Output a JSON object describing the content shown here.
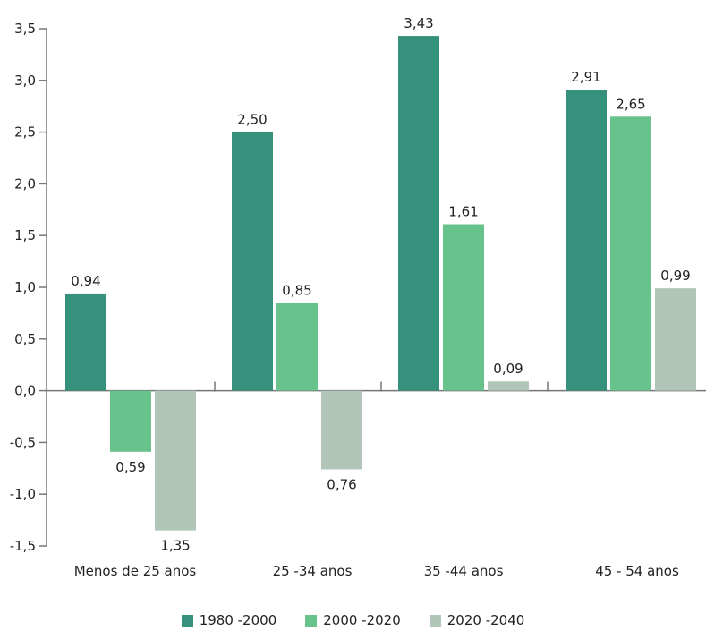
{
  "chart_data": {
    "type": "bar",
    "categories": [
      "Menos de 25 anos",
      "25 -34 anos",
      "35 -44 anos",
      "45 - 54 anos"
    ],
    "series": [
      {
        "name": "1980 -2000",
        "color": "#35917c",
        "values": [
          0.94,
          2.5,
          3.43,
          2.91
        ],
        "labels": [
          "0,94",
          "2,50",
          "3,43",
          "2,91"
        ]
      },
      {
        "name": "2000 -2020",
        "color": "#68c28c",
        "values": [
          -0.59,
          0.85,
          1.61,
          2.65
        ],
        "labels": [
          "0,59",
          "0,85",
          "1,61",
          "2,65"
        ]
      },
      {
        "name": "2020 -2040",
        "color": "#b1c6b8",
        "values": [
          -1.35,
          -0.76,
          0.09,
          0.99
        ],
        "labels": [
          "1,35",
          "0,76",
          "0,09",
          "0,99"
        ]
      }
    ],
    "ylim": [
      -1.5,
      3.5
    ],
    "yticks": [
      3.5,
      3.0,
      2.5,
      2.0,
      1.5,
      1.0,
      0.5,
      0.0,
      -0.5,
      -1.0,
      -1.5
    ],
    "ytick_labels": [
      "3,5",
      "3,0",
      "2,5",
      "2,0",
      "1,5",
      "1,0",
      "0,5",
      "0,0",
      "-0,5",
      "-1,0",
      "-1,5"
    ],
    "grid": false,
    "legend_position": "bottom-center"
  }
}
